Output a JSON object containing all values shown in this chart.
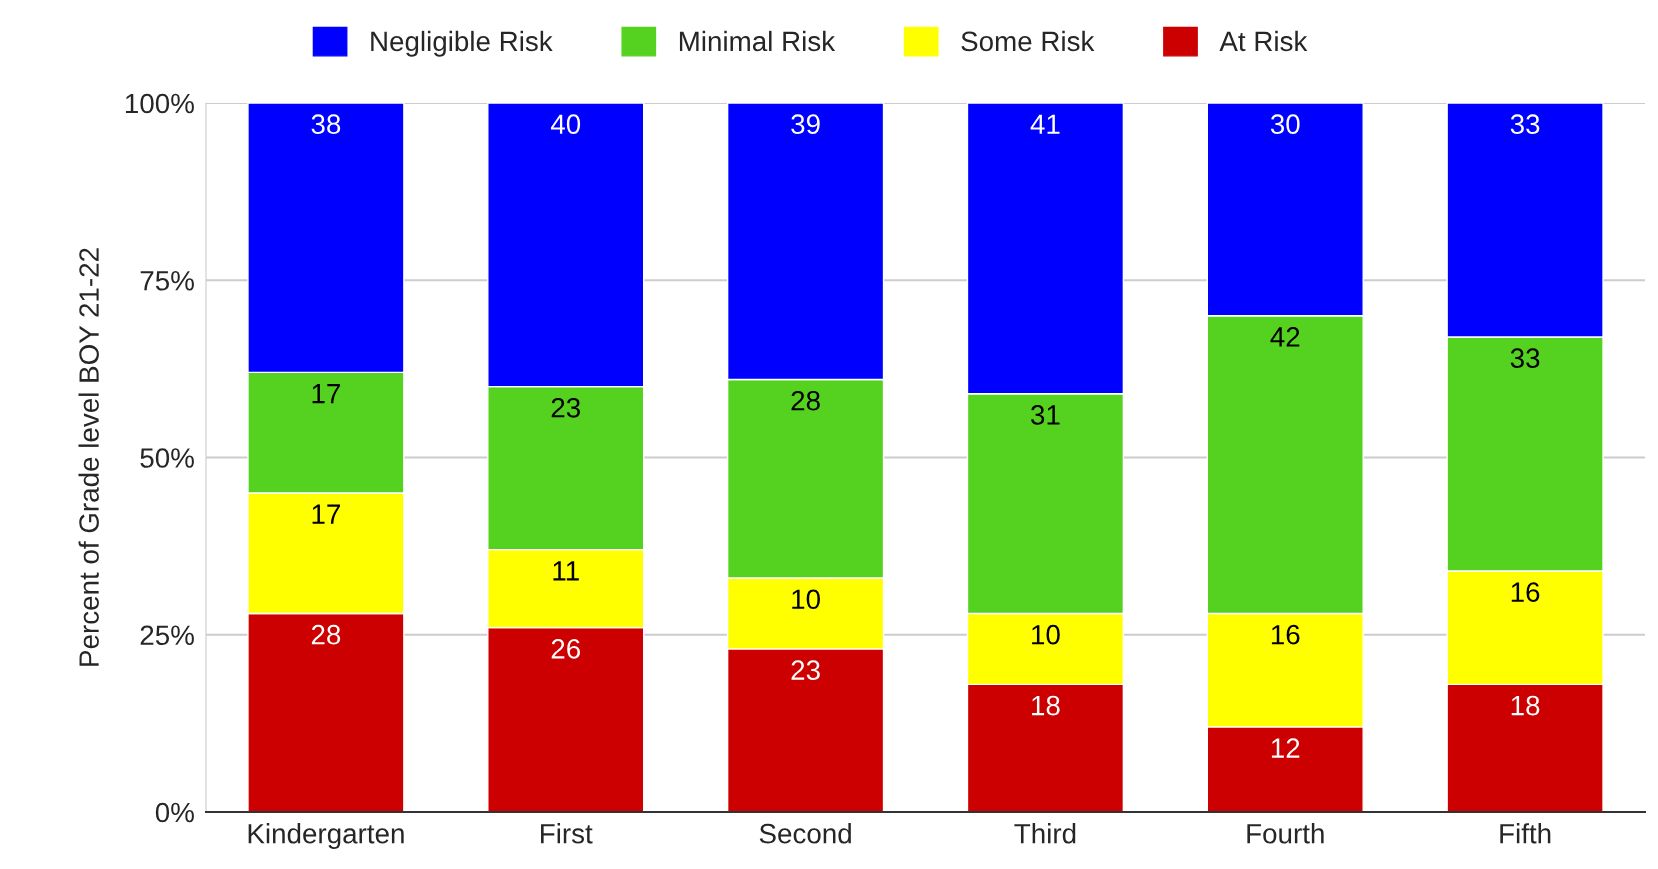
{
  "chart_data": {
    "type": "bar",
    "stacked": true,
    "ylabel": "Percent of Grade level BOY 21-22",
    "categories": [
      "Kindergarten",
      "First",
      "Second",
      "Third",
      "Fourth",
      "Fifth"
    ],
    "series": [
      {
        "name": "At Risk",
        "color": "#cc0000",
        "values": [
          28,
          26,
          23,
          18,
          12,
          18
        ]
      },
      {
        "name": "Some Risk",
        "color": "#ffff00",
        "values": [
          17,
          11,
          10,
          10,
          16,
          16
        ]
      },
      {
        "name": "Minimal Risk",
        "color": "#55d21f",
        "values": [
          17,
          23,
          28,
          31,
          42,
          33
        ]
      },
      {
        "name": "Negligible Risk",
        "color": "#0000ff",
        "values": [
          38,
          40,
          39,
          41,
          30,
          33
        ]
      }
    ],
    "ylim": [
      0,
      100
    ],
    "yticks": [
      {
        "value": 0,
        "label": "0%"
      },
      {
        "value": 25,
        "label": "25%"
      },
      {
        "value": 50,
        "label": "50%"
      },
      {
        "value": 75,
        "label": "75%"
      },
      {
        "value": 100,
        "label": "100%"
      }
    ],
    "grid": "y",
    "legend": "top",
    "data_labels": true
  }
}
